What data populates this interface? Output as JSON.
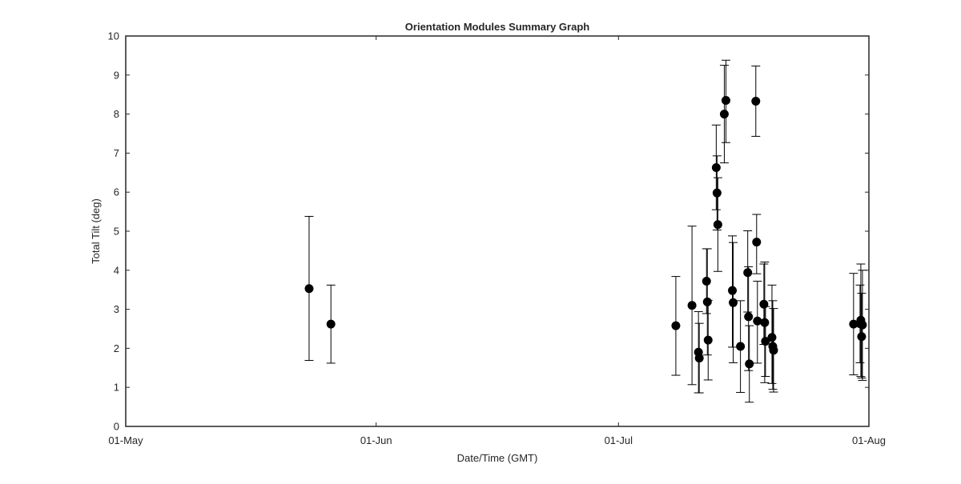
{
  "chart_data": {
    "type": "scatter",
    "title": "Orientation Modules Summary Graph",
    "xlabel": "Date/Time (GMT)",
    "ylabel": "Total Tilt (deg)",
    "xlim": [
      0,
      92
    ],
    "ylim": [
      0,
      10
    ],
    "x_ticks": [
      {
        "value": 0,
        "label": "01-May"
      },
      {
        "value": 31,
        "label": "01-Jun"
      },
      {
        "value": 61,
        "label": "01-Jul"
      },
      {
        "value": 92,
        "label": "01-Aug"
      }
    ],
    "y_ticks": [
      0,
      1,
      2,
      3,
      4,
      5,
      6,
      7,
      8,
      9,
      10
    ],
    "grid": false,
    "marker_color": "#000000",
    "axis_color": "#262626",
    "points": [
      {
        "x": 22.7,
        "y": 3.53,
        "low": 1.69,
        "high": 5.38
      },
      {
        "x": 25.4,
        "y": 2.62,
        "low": 1.62,
        "high": 3.62
      },
      {
        "x": 68.1,
        "y": 2.58,
        "low": 1.31,
        "high": 3.84
      },
      {
        "x": 70.1,
        "y": 3.1,
        "low": 1.07,
        "high": 5.13
      },
      {
        "x": 70.9,
        "y": 1.9,
        "low": 0.86,
        "high": 2.94
      },
      {
        "x": 71.0,
        "y": 1.75,
        "low": 0.86,
        "high": 2.64
      },
      {
        "x": 71.9,
        "y": 3.72,
        "low": 2.89,
        "high": 4.55
      },
      {
        "x": 72.0,
        "y": 3.19,
        "low": 1.83,
        "high": 4.55
      },
      {
        "x": 72.1,
        "y": 2.21,
        "low": 1.19,
        "high": 3.23
      },
      {
        "x": 73.1,
        "y": 6.63,
        "low": 5.55,
        "high": 7.72
      },
      {
        "x": 73.2,
        "y": 5.98,
        "low": 5.03,
        "high": 6.93
      },
      {
        "x": 73.3,
        "y": 5.17,
        "low": 3.97,
        "high": 6.37
      },
      {
        "x": 74.1,
        "y": 8.0,
        "low": 6.75,
        "high": 9.25
      },
      {
        "x": 74.3,
        "y": 8.35,
        "low": 7.27,
        "high": 9.38
      },
      {
        "x": 75.1,
        "y": 3.48,
        "low": 2.03,
        "high": 4.88
      },
      {
        "x": 75.2,
        "y": 3.17,
        "low": 1.63,
        "high": 4.71
      },
      {
        "x": 76.1,
        "y": 2.05,
        "low": 0.87,
        "high": 3.22
      },
      {
        "x": 77.0,
        "y": 3.94,
        "low": 2.93,
        "high": 5.01
      },
      {
        "x": 77.1,
        "y": 2.81,
        "low": 1.43,
        "high": 4.09
      },
      {
        "x": 77.2,
        "y": 1.6,
        "low": 0.62,
        "high": 2.58
      },
      {
        "x": 78.0,
        "y": 8.33,
        "low": 7.43,
        "high": 9.23
      },
      {
        "x": 78.1,
        "y": 4.72,
        "low": 3.91,
        "high": 5.43
      },
      {
        "x": 78.2,
        "y": 2.7,
        "low": 1.62,
        "high": 3.72
      },
      {
        "x": 79.0,
        "y": 3.13,
        "low": 2.1,
        "high": 4.16
      },
      {
        "x": 79.1,
        "y": 2.66,
        "low": 1.12,
        "high": 4.21
      },
      {
        "x": 79.2,
        "y": 2.18,
        "low": 1.28,
        "high": 3.07
      },
      {
        "x": 80.0,
        "y": 2.28,
        "low": 1.1,
        "high": 3.62
      },
      {
        "x": 80.1,
        "y": 2.05,
        "low": 0.95,
        "high": 3.22
      },
      {
        "x": 80.2,
        "y": 1.95,
        "low": 0.88,
        "high": 3.02
      },
      {
        "x": 90.1,
        "y": 2.62,
        "low": 1.32,
        "high": 3.92
      },
      {
        "x": 90.9,
        "y": 2.63,
        "low": 1.63,
        "high": 3.62
      },
      {
        "x": 91.0,
        "y": 2.72,
        "low": 1.28,
        "high": 4.16
      },
      {
        "x": 91.1,
        "y": 2.3,
        "low": 1.24,
        "high": 3.41
      },
      {
        "x": 91.2,
        "y": 2.6,
        "low": 1.18,
        "high": 4.0
      }
    ]
  }
}
